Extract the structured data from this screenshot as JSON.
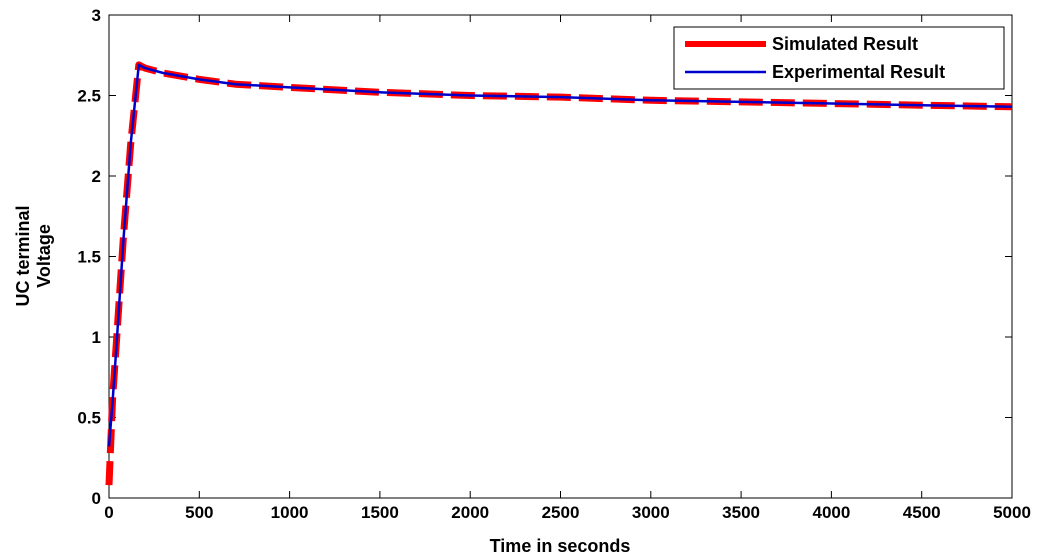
{
  "chart_data": {
    "type": "line",
    "title": "",
    "xlabel": "Time in seconds",
    "ylabel_lines": [
      "UC terminal",
      "Voltage"
    ],
    "xlim": [
      0,
      5000
    ],
    "ylim": [
      0,
      3
    ],
    "xticks": [
      0,
      500,
      1000,
      1500,
      2000,
      2500,
      3000,
      3500,
      4000,
      4500,
      5000
    ],
    "yticks": [
      0,
      0.5,
      1,
      1.5,
      2,
      2.5,
      3
    ],
    "ytick_labels": [
      "0",
      "0.5",
      "1",
      "1.5",
      "2",
      "2.5",
      "3"
    ],
    "grid": false,
    "legend_position": "top-right",
    "series": [
      {
        "name": "Simulated Result",
        "color": "#ff0000",
        "style": "thick-dashed",
        "x": [
          0,
          20,
          40,
          80,
          120,
          165,
          200,
          300,
          500,
          700,
          1000,
          1500,
          2000,
          2500,
          3000,
          3500,
          4000,
          4500,
          5000
        ],
        "y": [
          0.08,
          0.62,
          0.95,
          1.62,
          2.2,
          2.69,
          2.67,
          2.64,
          2.6,
          2.57,
          2.55,
          2.52,
          2.5,
          2.49,
          2.47,
          2.46,
          2.45,
          2.44,
          2.43
        ]
      },
      {
        "name": "Experimental Result",
        "color": "#0000cc",
        "style": "solid",
        "x": [
          0,
          20,
          40,
          80,
          120,
          165,
          200,
          300,
          500,
          700,
          1000,
          1500,
          2000,
          2500,
          3000,
          3500,
          4000,
          4500,
          5000
        ],
        "y": [
          0.32,
          0.6,
          0.92,
          1.6,
          2.2,
          2.69,
          2.67,
          2.64,
          2.6,
          2.57,
          2.55,
          2.52,
          2.5,
          2.49,
          2.47,
          2.46,
          2.45,
          2.44,
          2.43
        ]
      }
    ]
  }
}
